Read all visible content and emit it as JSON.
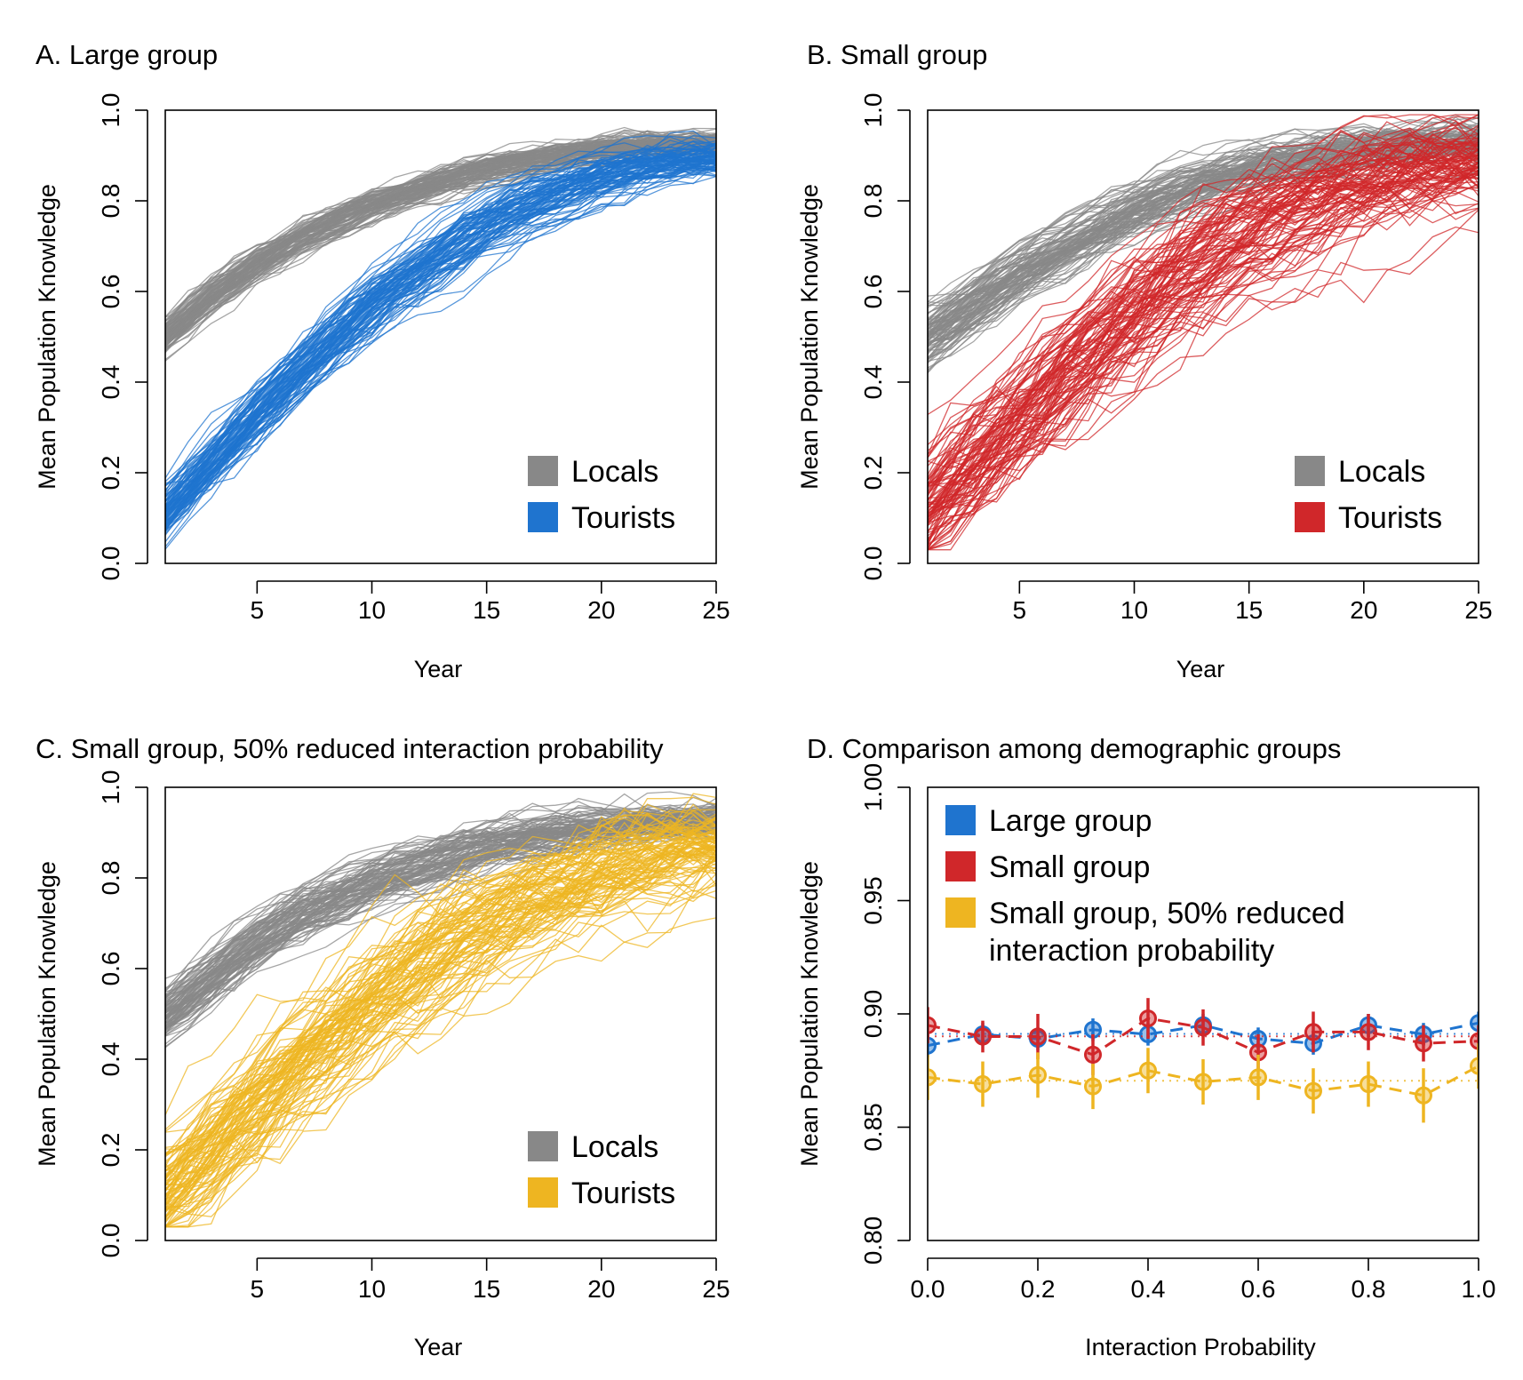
{
  "colors": {
    "locals": "#888888",
    "large": "#1f74cf",
    "small": "#d0272a",
    "reduced": "#eeb521",
    "axis": "#000000"
  },
  "chart_data": [
    {
      "id": "A",
      "type": "line",
      "title": "A. Large group",
      "xlabel": "Year",
      "ylabel": "Mean Population Knowledge",
      "xlim": [
        1,
        25
      ],
      "ylim": [
        0,
        1
      ],
      "xticks": [
        "5",
        "10",
        "15",
        "20",
        "25"
      ],
      "yticks": [
        "0.0",
        "0.2",
        "0.4",
        "0.6",
        "0.8",
        "1.0"
      ],
      "legend_position": "bottom-right",
      "series": [
        {
          "name": "Locals",
          "color": "#888888",
          "runs": 100,
          "y_start": 0.5,
          "y_end": 0.93,
          "spread": 0.02,
          "mean": [
            [
              1,
              0.5
            ],
            [
              3,
              0.59
            ],
            [
              5,
              0.66
            ],
            [
              7,
              0.72
            ],
            [
              10,
              0.79
            ],
            [
              13,
              0.84
            ],
            [
              15,
              0.87
            ],
            [
              18,
              0.9
            ],
            [
              21,
              0.92
            ],
            [
              25,
              0.93
            ]
          ]
        },
        {
          "name": "Tourists",
          "color": "#1f74cf",
          "runs": 100,
          "y_start": 0.11,
          "y_end": 0.9,
          "spread": 0.03,
          "mean": [
            [
              1,
              0.11
            ],
            [
              3,
              0.22
            ],
            [
              5,
              0.33
            ],
            [
              7,
              0.43
            ],
            [
              10,
              0.57
            ],
            [
              13,
              0.68
            ],
            [
              15,
              0.75
            ],
            [
              18,
              0.82
            ],
            [
              21,
              0.87
            ],
            [
              25,
              0.9
            ]
          ]
        }
      ]
    },
    {
      "id": "B",
      "type": "line",
      "title": "B. Small group",
      "xlabel": "Year",
      "ylabel": "Mean Population Knowledge",
      "xlim": [
        1,
        25
      ],
      "ylim": [
        0,
        1
      ],
      "xticks": [
        "5",
        "10",
        "15",
        "20",
        "25"
      ],
      "yticks": [
        "0.0",
        "0.2",
        "0.4",
        "0.6",
        "0.8",
        "1.0"
      ],
      "legend_position": "bottom-right",
      "series": [
        {
          "name": "Locals",
          "color": "#888888",
          "runs": 100,
          "y_start": 0.5,
          "y_end": 0.93,
          "spread": 0.03,
          "mean": [
            [
              1,
              0.5
            ],
            [
              3,
              0.57
            ],
            [
              5,
              0.64
            ],
            [
              7,
              0.7
            ],
            [
              10,
              0.78
            ],
            [
              13,
              0.84
            ],
            [
              15,
              0.87
            ],
            [
              18,
              0.9
            ],
            [
              21,
              0.92
            ],
            [
              25,
              0.93
            ]
          ]
        },
        {
          "name": "Tourists",
          "color": "#d0272a",
          "runs": 100,
          "y_start": 0.11,
          "y_end": 0.9,
          "spread": 0.06,
          "mean": [
            [
              1,
              0.11
            ],
            [
              3,
              0.22
            ],
            [
              5,
              0.32
            ],
            [
              7,
              0.42
            ],
            [
              10,
              0.56
            ],
            [
              13,
              0.67
            ],
            [
              15,
              0.74
            ],
            [
              18,
              0.81
            ],
            [
              21,
              0.86
            ],
            [
              25,
              0.9
            ]
          ]
        }
      ]
    },
    {
      "id": "C",
      "type": "line",
      "title": "C. Small group, 50% reduced interaction probability",
      "xlabel": "Year",
      "ylabel": "Mean Population Knowledge",
      "xlim": [
        1,
        25
      ],
      "ylim": [
        0,
        1
      ],
      "xticks": [
        "5",
        "10",
        "15",
        "20",
        "25"
      ],
      "yticks": [
        "0.0",
        "0.2",
        "0.4",
        "0.6",
        "0.8",
        "1.0"
      ],
      "legend_position": "bottom-right",
      "series": [
        {
          "name": "Locals",
          "color": "#888888",
          "runs": 100,
          "y_start": 0.5,
          "y_end": 0.93,
          "spread": 0.03,
          "mean": [
            [
              1,
              0.5
            ],
            [
              3,
              0.58
            ],
            [
              5,
              0.66
            ],
            [
              7,
              0.72
            ],
            [
              10,
              0.79
            ],
            [
              13,
              0.84
            ],
            [
              15,
              0.87
            ],
            [
              18,
              0.9
            ],
            [
              21,
              0.92
            ],
            [
              25,
              0.93
            ]
          ]
        },
        {
          "name": "Tourists",
          "color": "#eeb521",
          "runs": 100,
          "y_start": 0.11,
          "y_end": 0.89,
          "spread": 0.06,
          "mean": [
            [
              1,
              0.11
            ],
            [
              3,
              0.2
            ],
            [
              5,
              0.3
            ],
            [
              7,
              0.39
            ],
            [
              10,
              0.52
            ],
            [
              13,
              0.63
            ],
            [
              15,
              0.7
            ],
            [
              18,
              0.77
            ],
            [
              21,
              0.83
            ],
            [
              25,
              0.89
            ]
          ]
        }
      ]
    },
    {
      "id": "D",
      "type": "line",
      "title": "D. Comparison among demographic groups",
      "xlabel": "Interaction Probability",
      "ylabel": "Mean Population Knowledge",
      "xlim": [
        0,
        1
      ],
      "ylim": [
        0.8,
        1.0
      ],
      "xticks": [
        "0.0",
        "0.2",
        "0.4",
        "0.6",
        "0.8",
        "1.0"
      ],
      "yticks": [
        "0.80",
        "0.85",
        "0.90",
        "0.95",
        "1.00"
      ],
      "legend_position": "top-left",
      "x": [
        0.0,
        0.1,
        0.2,
        0.3,
        0.4,
        0.5,
        0.6,
        0.7,
        0.8,
        0.9,
        1.0
      ],
      "series": [
        {
          "name": "Large group",
          "color": "#1f74cf",
          "values": [
            0.886,
            0.891,
            0.889,
            0.893,
            0.891,
            0.895,
            0.889,
            0.887,
            0.895,
            0.891,
            0.896
          ],
          "error": [
            0.005,
            0.005,
            0.005,
            0.005,
            0.005,
            0.005,
            0.005,
            0.005,
            0.005,
            0.005,
            0.005
          ]
        },
        {
          "name": "Small group",
          "color": "#d0272a",
          "values": [
            0.895,
            0.89,
            0.89,
            0.882,
            0.898,
            0.894,
            0.883,
            0.892,
            0.892,
            0.887,
            0.888
          ],
          "error": [
            0.008,
            0.007,
            0.01,
            0.009,
            0.009,
            0.008,
            0.008,
            0.009,
            0.008,
            0.008,
            0.007
          ]
        },
        {
          "name": "Small group, 50% reduced interaction probability",
          "color": "#eeb521",
          "values": [
            0.872,
            0.869,
            0.873,
            0.868,
            0.875,
            0.87,
            0.872,
            0.866,
            0.869,
            0.864,
            0.877
          ],
          "error": [
            0.01,
            0.01,
            0.01,
            0.01,
            0.01,
            0.01,
            0.01,
            0.01,
            0.01,
            0.012,
            0.01
          ]
        }
      ]
    }
  ]
}
